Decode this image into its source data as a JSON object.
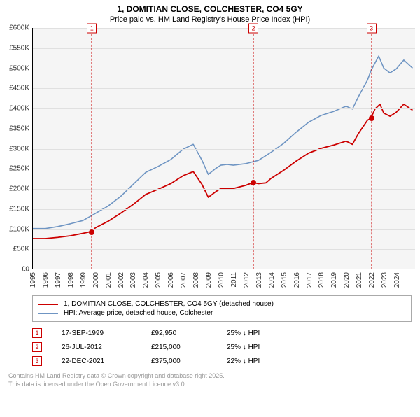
{
  "title_line1": "1, DOMITIAN CLOSE, COLCHESTER, CO4 5GY",
  "title_line2": "Price paid vs. HM Land Registry's House Price Index (HPI)",
  "chart": {
    "type": "line",
    "background_color": "#f5f5f5",
    "grid_color": "#e0e0e0",
    "axis_color": "#000000",
    "x_tick_years": [
      1995,
      1996,
      1997,
      1998,
      1999,
      2000,
      2001,
      2002,
      2003,
      2004,
      2005,
      2006,
      2007,
      2008,
      2009,
      2010,
      2011,
      2012,
      2013,
      2014,
      2015,
      2016,
      2017,
      2018,
      2019,
      2020,
      2021,
      2022,
      2023,
      2024
    ],
    "x_min_year": 1995,
    "x_max_year": 2025.5,
    "y_ticks": [
      0,
      50000,
      100000,
      150000,
      200000,
      250000,
      300000,
      350000,
      400000,
      450000,
      500000,
      550000,
      600000
    ],
    "y_tick_labels": [
      "£0",
      "£50K",
      "£100K",
      "£150K",
      "£200K",
      "£250K",
      "£300K",
      "£350K",
      "£400K",
      "£450K",
      "£500K",
      "£550K",
      "£600K"
    ],
    "y_min": 0,
    "y_max": 600000,
    "series": {
      "hpi": {
        "color": "#6f95c3",
        "width": 1.6,
        "points": [
          [
            1995.0,
            100000
          ],
          [
            1996.0,
            100000
          ],
          [
            1997.0,
            105000
          ],
          [
            1998.0,
            112000
          ],
          [
            1999.0,
            120000
          ],
          [
            2000.0,
            138000
          ],
          [
            2001.0,
            156000
          ],
          [
            2002.0,
            180000
          ],
          [
            2003.0,
            210000
          ],
          [
            2004.0,
            240000
          ],
          [
            2005.0,
            255000
          ],
          [
            2006.0,
            272000
          ],
          [
            2007.0,
            298000
          ],
          [
            2007.8,
            310000
          ],
          [
            2008.5,
            270000
          ],
          [
            2009.0,
            235000
          ],
          [
            2009.6,
            250000
          ],
          [
            2010.0,
            258000
          ],
          [
            2010.5,
            260000
          ],
          [
            2011.0,
            258000
          ],
          [
            2012.0,
            262000
          ],
          [
            2013.0,
            270000
          ],
          [
            2014.0,
            290000
          ],
          [
            2015.0,
            312000
          ],
          [
            2016.0,
            340000
          ],
          [
            2017.0,
            365000
          ],
          [
            2018.0,
            382000
          ],
          [
            2019.0,
            392000
          ],
          [
            2020.0,
            405000
          ],
          [
            2020.5,
            398000
          ],
          [
            2021.0,
            430000
          ],
          [
            2021.7,
            470000
          ],
          [
            2022.0,
            495000
          ],
          [
            2022.6,
            530000
          ],
          [
            2023.0,
            500000
          ],
          [
            2023.5,
            488000
          ],
          [
            2024.0,
            498000
          ],
          [
            2024.6,
            520000
          ],
          [
            2025.3,
            500000
          ]
        ]
      },
      "property": {
        "color": "#cc0000",
        "width": 1.8,
        "points": [
          [
            1995.0,
            75000
          ],
          [
            1996.0,
            75000
          ],
          [
            1997.0,
            78000
          ],
          [
            1998.0,
            82000
          ],
          [
            1999.0,
            88000
          ],
          [
            1999.7,
            92950
          ],
          [
            2000.0,
            102000
          ],
          [
            2001.0,
            118000
          ],
          [
            2002.0,
            138000
          ],
          [
            2003.0,
            160000
          ],
          [
            2004.0,
            185000
          ],
          [
            2005.0,
            198000
          ],
          [
            2006.0,
            212000
          ],
          [
            2007.0,
            232000
          ],
          [
            2007.8,
            242000
          ],
          [
            2008.5,
            210000
          ],
          [
            2009.0,
            178000
          ],
          [
            2009.6,
            192000
          ],
          [
            2010.0,
            200000
          ],
          [
            2011.0,
            200000
          ],
          [
            2012.0,
            208000
          ],
          [
            2012.57,
            215000
          ],
          [
            2013.0,
            212000
          ],
          [
            2013.6,
            214000
          ],
          [
            2014.0,
            225000
          ],
          [
            2015.0,
            245000
          ],
          [
            2016.0,
            268000
          ],
          [
            2017.0,
            288000
          ],
          [
            2018.0,
            300000
          ],
          [
            2019.0,
            308000
          ],
          [
            2020.0,
            318000
          ],
          [
            2020.5,
            310000
          ],
          [
            2021.0,
            338000
          ],
          [
            2021.7,
            370000
          ],
          [
            2021.97,
            375000
          ],
          [
            2022.3,
            398000
          ],
          [
            2022.7,
            410000
          ],
          [
            2023.0,
            388000
          ],
          [
            2023.5,
            380000
          ],
          [
            2024.0,
            390000
          ],
          [
            2024.6,
            410000
          ],
          [
            2025.3,
            395000
          ]
        ]
      }
    },
    "markers": [
      {
        "n": "1",
        "year": 1999.7,
        "color": "#cc0000"
      },
      {
        "n": "2",
        "year": 2012.57,
        "color": "#cc0000"
      },
      {
        "n": "3",
        "year": 2021.97,
        "color": "#cc0000"
      }
    ],
    "sale_dots": [
      {
        "year": 1999.7,
        "price": 92950,
        "color": "#cc0000"
      },
      {
        "year": 2012.57,
        "price": 215000,
        "color": "#cc0000"
      },
      {
        "year": 2021.97,
        "price": 375000,
        "color": "#cc0000"
      }
    ]
  },
  "legend": {
    "items": [
      {
        "color": "#cc0000",
        "label": "1, DOMITIAN CLOSE, COLCHESTER, CO4 5GY (detached house)"
      },
      {
        "color": "#6f95c3",
        "label": "HPI: Average price, detached house, Colchester"
      }
    ]
  },
  "sales": [
    {
      "n": "1",
      "color": "#cc0000",
      "date": "17-SEP-1999",
      "price": "£92,950",
      "diff": "25% ↓ HPI"
    },
    {
      "n": "2",
      "color": "#cc0000",
      "date": "26-JUL-2012",
      "price": "£215,000",
      "diff": "25% ↓ HPI"
    },
    {
      "n": "3",
      "color": "#cc0000",
      "date": "22-DEC-2021",
      "price": "£375,000",
      "diff": "22% ↓ HPI"
    }
  ],
  "attribution_line1": "Contains HM Land Registry data © Crown copyright and database right 2025.",
  "attribution_line2": "This data is licensed under the Open Government Licence v3.0."
}
